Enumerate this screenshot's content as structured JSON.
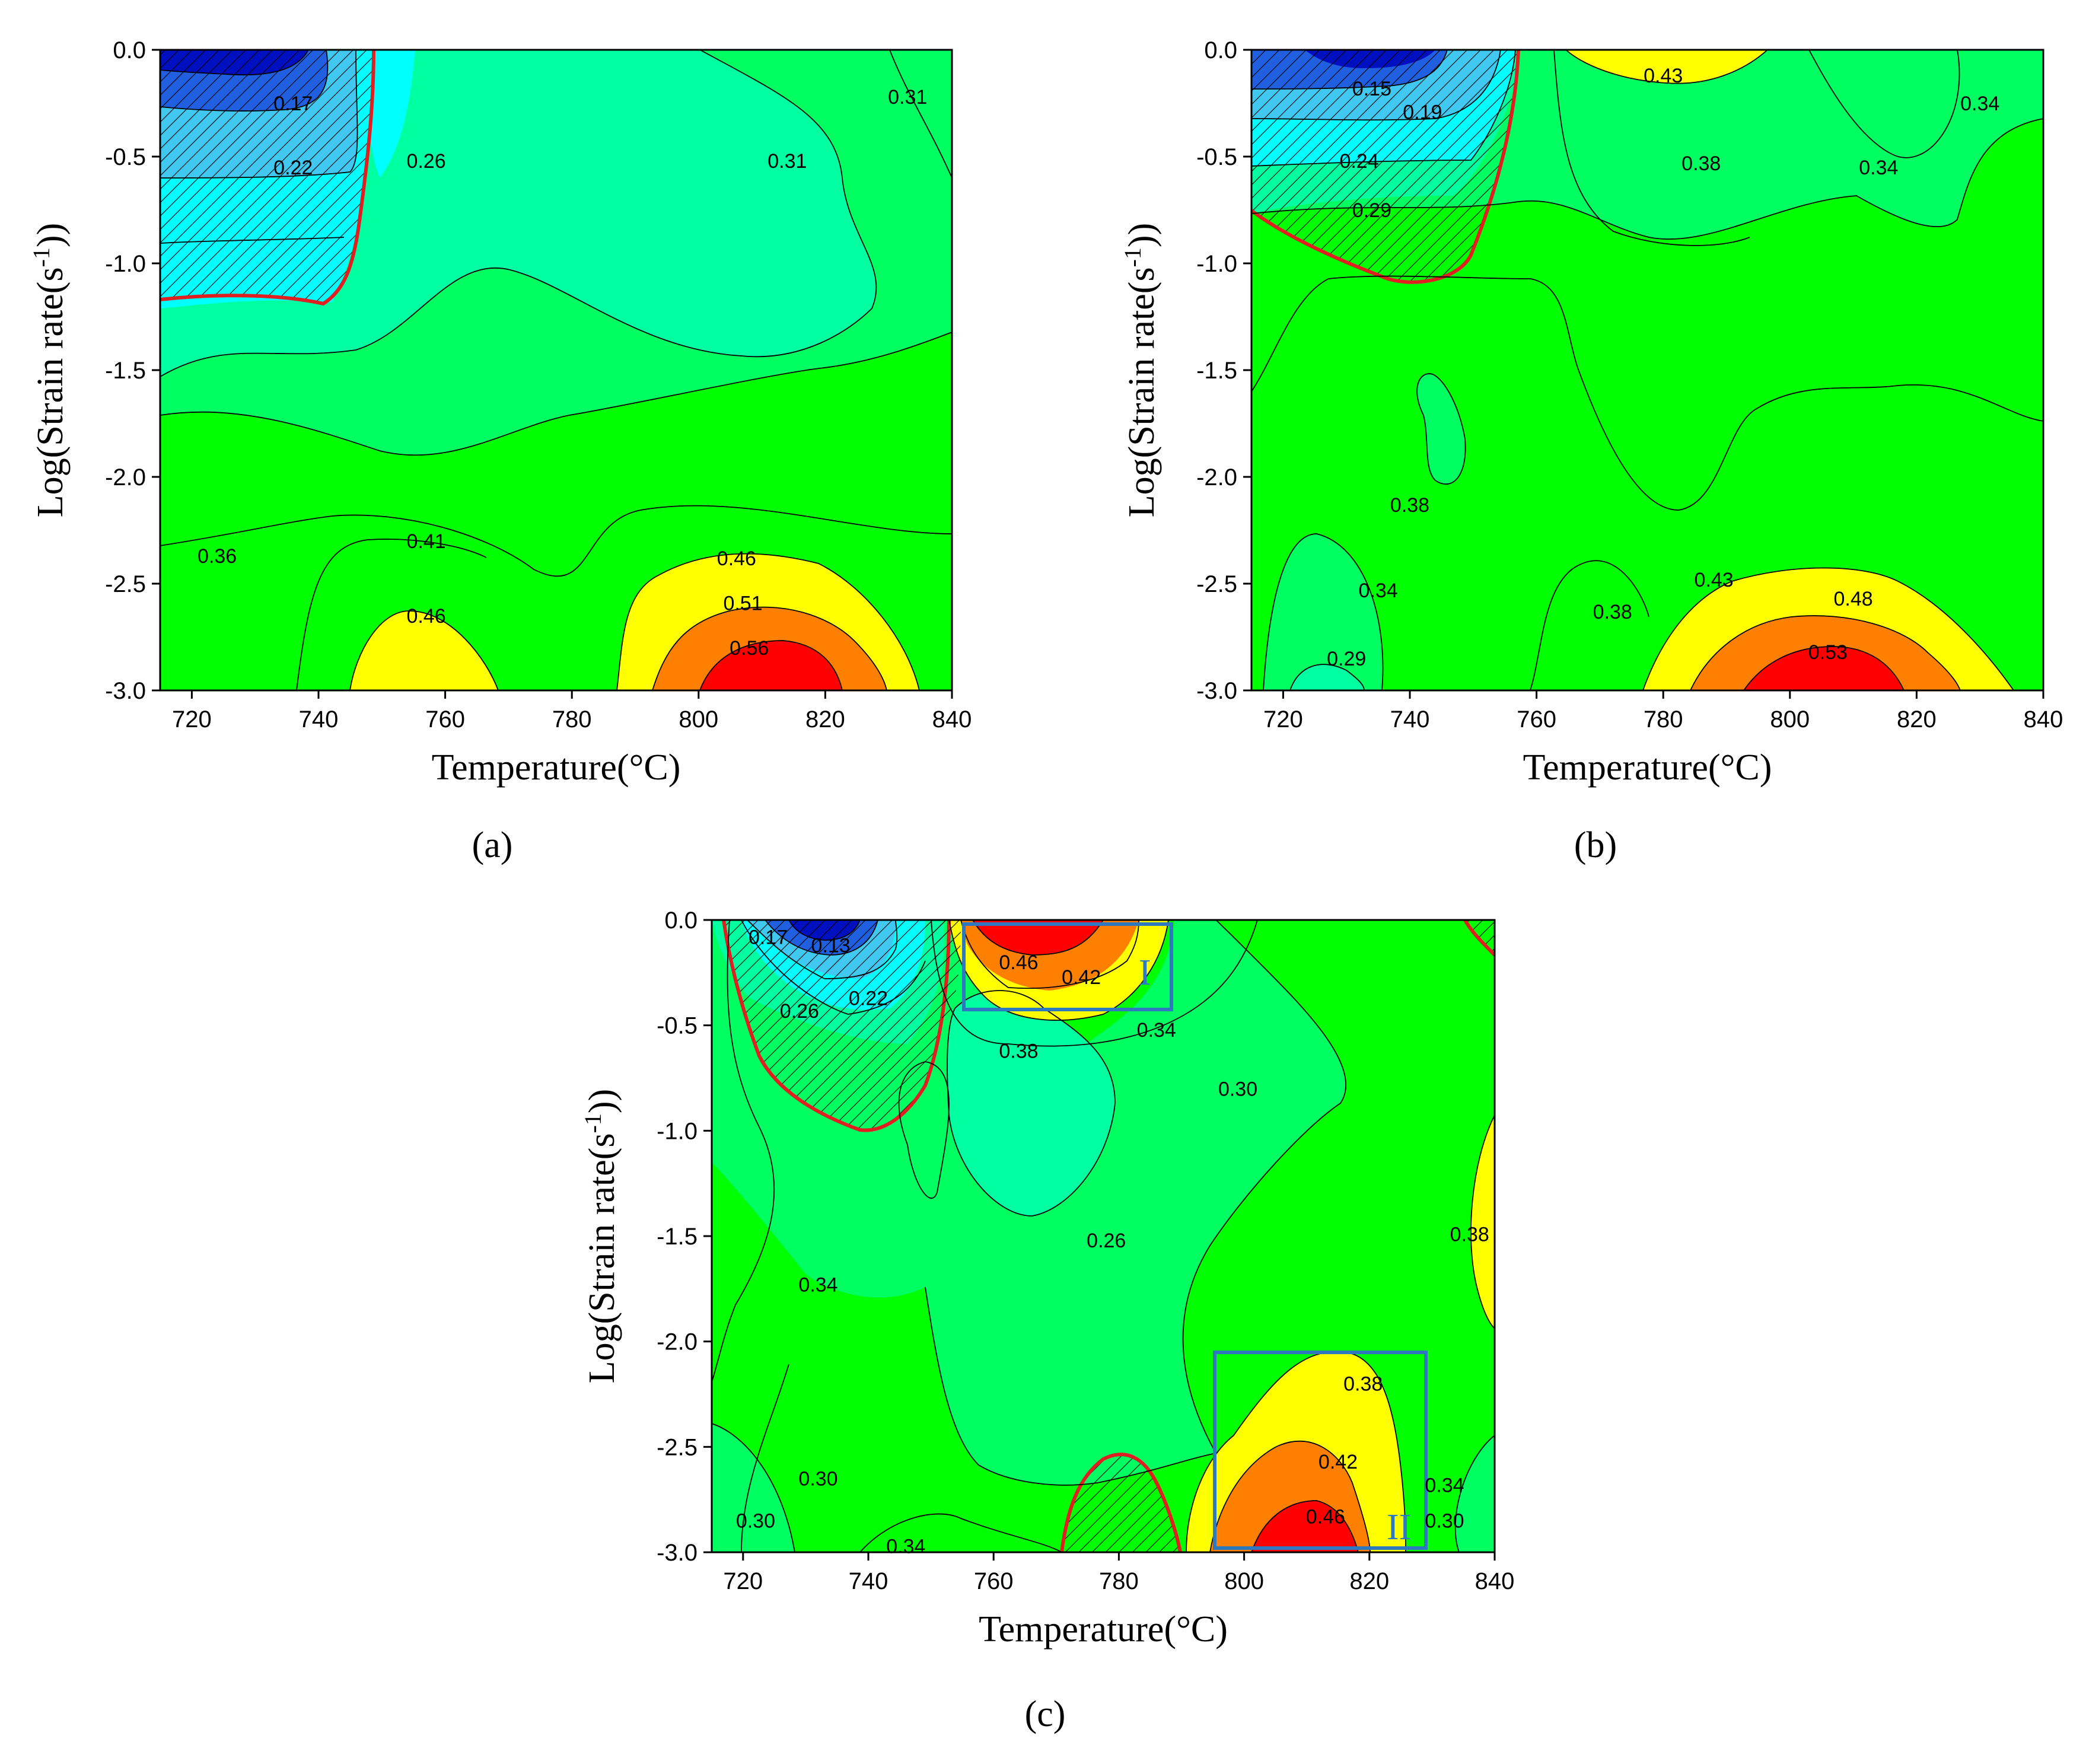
{
  "figure": {
    "panel_labels": [
      "(a)",
      "(b)",
      "(c)"
    ],
    "box_labels": [
      "I",
      "II"
    ]
  },
  "colors": {
    "red": "#ff0000",
    "orange": "#ff8000",
    "yellow": "#ffff00",
    "green": "#00ff00",
    "green2": "#00ff60",
    "teal": "#00ffa0",
    "cyan": "#00ffff",
    "sky": "#40c8f0",
    "blue": "#2060e0",
    "navy": "#0010c0",
    "instability": "#e02020",
    "box": "#2e78c0"
  },
  "chart_data": [
    {
      "type": "heatmap",
      "panel": "(a)",
      "xlabel": "Temperature(°C)",
      "ylabel": "Log(Strain rate(s-1))",
      "xlim": [
        715,
        840
      ],
      "ylim": [
        -3.0,
        0.0
      ],
      "xticks": [
        "720",
        "740",
        "760",
        "780",
        "800",
        "820",
        "840"
      ],
      "yticks": [
        "0.0",
        "-0.5",
        "-1.0",
        "-1.5",
        "-2.0",
        "-2.5",
        "-3.0"
      ],
      "contour_labels": [
        {
          "text": "0.17",
          "x": 736,
          "y": -0.25
        },
        {
          "text": "0.22",
          "x": 736,
          "y": -0.55
        },
        {
          "text": "0.26",
          "x": 757,
          "y": -0.52
        },
        {
          "text": "0.31",
          "x": 814,
          "y": -0.52
        },
        {
          "text": "0.31",
          "x": 833,
          "y": -0.22
        },
        {
          "text": "0.36",
          "x": 724,
          "y": -2.37
        },
        {
          "text": "0.41",
          "x": 757,
          "y": -2.3
        },
        {
          "text": "0.46",
          "x": 757,
          "y": -2.65
        },
        {
          "text": "0.46",
          "x": 806,
          "y": -2.38
        },
        {
          "text": "0.51",
          "x": 807,
          "y": -2.59
        },
        {
          "text": "0.56",
          "x": 808,
          "y": -2.8
        }
      ],
      "instability_region": "T 715-750 °C, log strain rate -1.2 to 0.0"
    },
    {
      "type": "heatmap",
      "panel": "(b)",
      "xlabel": "Temperature(°C)",
      "ylabel": "Log(Strain rate(s-1))",
      "xlim": [
        715,
        840
      ],
      "ylim": [
        -3.0,
        0.0
      ],
      "xticks": [
        "720",
        "740",
        "760",
        "780",
        "800",
        "820",
        "840"
      ],
      "yticks": [
        "0.0",
        "-0.5",
        "-1.0",
        "-1.5",
        "-2.0",
        "-2.5",
        "-3.0"
      ],
      "contour_labels": [
        {
          "text": "0.15",
          "x": 734,
          "y": -0.18
        },
        {
          "text": "0.19",
          "x": 742,
          "y": -0.29
        },
        {
          "text": "0.24",
          "x": 732,
          "y": -0.52
        },
        {
          "text": "0.29",
          "x": 734,
          "y": -0.75
        },
        {
          "text": "0.43",
          "x": 780,
          "y": -0.12
        },
        {
          "text": "0.38",
          "x": 786,
          "y": -0.53
        },
        {
          "text": "0.34",
          "x": 814,
          "y": -0.55
        },
        {
          "text": "0.34",
          "x": 830,
          "y": -0.25
        },
        {
          "text": "0.38",
          "x": 740,
          "y": -2.13
        },
        {
          "text": "0.34",
          "x": 735,
          "y": -2.53
        },
        {
          "text": "0.38",
          "x": 772,
          "y": -2.63
        },
        {
          "text": "0.43",
          "x": 788,
          "y": -2.48
        },
        {
          "text": "0.48",
          "x": 810,
          "y": -2.57
        },
        {
          "text": "0.53",
          "x": 806,
          "y": -2.82
        },
        {
          "text": "0.29",
          "x": 730,
          "y": -2.85
        }
      ],
      "instability_region": "T 715-757 °C, log strain rate -1.1 to 0.0"
    },
    {
      "type": "heatmap",
      "panel": "(c)",
      "xlabel": "Temperature(°C)",
      "ylabel": "Log(Strain rate(s-1))",
      "xlim": [
        715,
        840
      ],
      "ylim": [
        -3.0,
        0.0
      ],
      "xticks": [
        "720",
        "740",
        "760",
        "780",
        "800",
        "820",
        "840"
      ],
      "yticks": [
        "0.0",
        "-0.5",
        "-1.0",
        "-1.5",
        "-2.0",
        "-2.5",
        "-3.0"
      ],
      "contour_labels": [
        {
          "text": "0.17",
          "x": 724,
          "y": -0.08
        },
        {
          "text": "0.13",
          "x": 734,
          "y": -0.12
        },
        {
          "text": "0.22",
          "x": 740,
          "y": -0.37
        },
        {
          "text": "0.26",
          "x": 729,
          "y": -0.43
        },
        {
          "text": "0.46",
          "x": 764,
          "y": -0.2
        },
        {
          "text": "0.42",
          "x": 774,
          "y": -0.27
        },
        {
          "text": "0.38",
          "x": 764,
          "y": -0.62
        },
        {
          "text": "0.34",
          "x": 786,
          "y": -0.52
        },
        {
          "text": "0.30",
          "x": 799,
          "y": -0.8
        },
        {
          "text": "0.26",
          "x": 778,
          "y": -1.52
        },
        {
          "text": "0.34",
          "x": 732,
          "y": -1.73
        },
        {
          "text": "0.38",
          "x": 836,
          "y": -1.49
        },
        {
          "text": "0.38",
          "x": 819,
          "y": -2.2
        },
        {
          "text": "0.42",
          "x": 815,
          "y": -2.57
        },
        {
          "text": "0.46",
          "x": 813,
          "y": -2.83
        },
        {
          "text": "0.34",
          "x": 832,
          "y": -2.68
        },
        {
          "text": "0.30",
          "x": 832,
          "y": -2.85
        },
        {
          "text": "0.30",
          "x": 732,
          "y": -2.65
        },
        {
          "text": "0.30",
          "x": 722,
          "y": -2.85
        },
        {
          "text": "0.34",
          "x": 746,
          "y": -2.97
        }
      ],
      "domain_boxes": [
        {
          "label": "I",
          "x": [
            756,
            789
          ],
          "y": [
            -0.4,
            0.0
          ]
        },
        {
          "label": "II",
          "x": [
            795,
            829
          ],
          "y": [
            -3.0,
            -2.05
          ]
        }
      ],
      "instability_region": "T 718-758 °C, log strain rate -1.0 to 0.0; T 771-794 °C, log strain rate -3.0 to -2.55; corner near 836-840 °C, 0.0"
    }
  ]
}
